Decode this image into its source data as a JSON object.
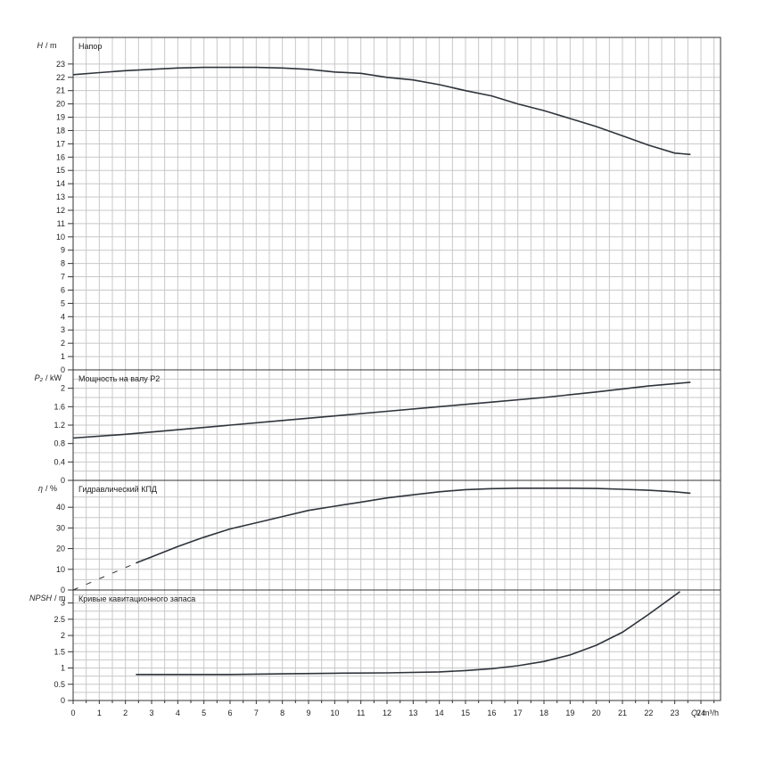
{
  "colors": {
    "curve": "#2f333b",
    "grid": "#c8c8c8",
    "frame": "#333333"
  },
  "x_axis": {
    "label_q": "Q",
    "label_unit": "/ m³/h",
    "range": [
      0,
      24.75
    ],
    "ticks": [
      "0",
      "1",
      "2",
      "3",
      "4",
      "5",
      "6",
      "7",
      "8",
      "9",
      "10",
      "11",
      "12",
      "13",
      "14",
      "15",
      "16",
      "17",
      "18",
      "19",
      "20",
      "21",
      "22",
      "23",
      "24"
    ]
  },
  "chart_data": [
    {
      "type": "line",
      "title": "Напор",
      "ylabel_symbol": "H",
      "ylabel_unit": "/ m",
      "ylim": [
        0,
        25
      ],
      "yticks": [
        0,
        1,
        2,
        3,
        4,
        5,
        6,
        7,
        8,
        9,
        10,
        11,
        12,
        13,
        14,
        15,
        16,
        17,
        18,
        19,
        20,
        21,
        22,
        23
      ],
      "grid": true,
      "series": [
        {
          "x": [
            0,
            1,
            2,
            3,
            4,
            5,
            6,
            7,
            8,
            9,
            10,
            11,
            12,
            13,
            14,
            15,
            16,
            17,
            18,
            19,
            20,
            21,
            22,
            23,
            23.6
          ],
          "y": [
            22.2,
            22.35,
            22.5,
            22.6,
            22.7,
            22.75,
            22.75,
            22.75,
            22.7,
            22.6,
            22.4,
            22.3,
            22.0,
            21.8,
            21.45,
            21.0,
            20.6,
            20.0,
            19.5,
            18.9,
            18.3,
            17.6,
            16.9,
            16.3,
            16.2
          ]
        }
      ]
    },
    {
      "type": "line",
      "title": "Мощность на валу P2",
      "ylabel_symbol": "P₂",
      "ylabel_unit": "/ kW",
      "ylim": [
        0,
        2.4
      ],
      "yticks": [
        "0",
        "0.4",
        "0.8",
        "1.2",
        "1.6",
        "2"
      ],
      "grid": true,
      "series": [
        {
          "x": [
            0,
            2,
            4,
            6,
            8,
            10,
            12,
            14,
            16,
            18,
            20,
            22,
            23.6
          ],
          "y": [
            0.92,
            1.0,
            1.1,
            1.2,
            1.3,
            1.4,
            1.5,
            1.6,
            1.7,
            1.8,
            1.92,
            2.05,
            2.13
          ]
        }
      ]
    },
    {
      "type": "line",
      "title": "Гидравлический КПД",
      "ylabel_symbol": "η",
      "ylabel_unit": "/ %",
      "ylim": [
        0,
        53
      ],
      "yticks": [
        0,
        10,
        20,
        30,
        40
      ],
      "grid": true,
      "series": [
        {
          "x": [
            2.4,
            3,
            4,
            5,
            6,
            7,
            8,
            9,
            10,
            11,
            12,
            13,
            14,
            15,
            16,
            17,
            18,
            19,
            20,
            21,
            22,
            23,
            23.6
          ],
          "y": [
            13,
            16,
            21,
            25.5,
            29.5,
            32.5,
            35.5,
            38.5,
            40.5,
            42.5,
            44.5,
            46,
            47.5,
            48.5,
            49,
            49.2,
            49.2,
            49.2,
            49.1,
            48.7,
            48.2,
            47.5,
            46.8
          ]
        },
        {
          "dashed": true,
          "x": [
            0,
            2.4
          ],
          "y": [
            0,
            13
          ]
        }
      ]
    },
    {
      "type": "line",
      "title": "Кривые кавитационного запаса",
      "ylabel_symbol": "NPSH",
      "ylabel_unit": "/ m",
      "ylim": [
        0,
        3.4
      ],
      "yticks": [
        "0",
        "0.5",
        "1",
        "1.5",
        "2",
        "2.5",
        "3"
      ],
      "grid": true,
      "series": [
        {
          "x": [
            2.4,
            4,
            6,
            8,
            10,
            12,
            14,
            15,
            16,
            17,
            18,
            19,
            20,
            21,
            22,
            23.2
          ],
          "y": [
            0.8,
            0.8,
            0.8,
            0.82,
            0.84,
            0.85,
            0.88,
            0.92,
            0.98,
            1.07,
            1.2,
            1.4,
            1.7,
            2.1,
            2.65,
            3.35
          ]
        }
      ]
    }
  ]
}
